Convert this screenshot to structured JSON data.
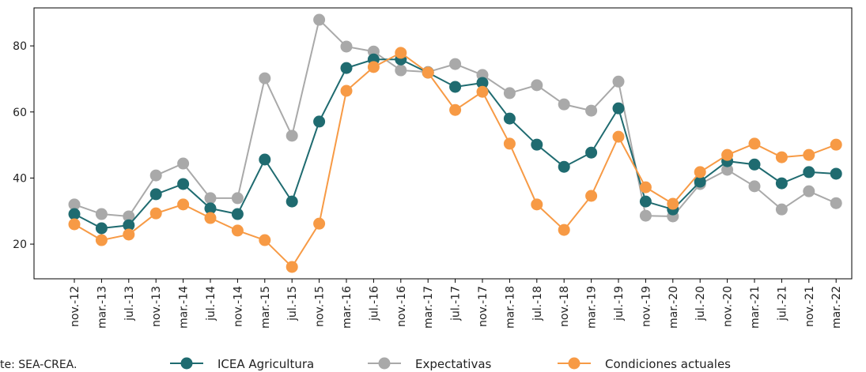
{
  "chart_data": {
    "type": "line",
    "categories": [
      "nov.-12",
      "mar.-13",
      "jul.-13",
      "nov.-13",
      "mar.-14",
      "jul.-14",
      "nov.-14",
      "mar.-15",
      "jul.-15",
      "nov.-15",
      "mar.-16",
      "jul.-16",
      "nov.-16",
      "mar.-17",
      "jul.-17",
      "nov.-17",
      "mar.-18",
      "jul.-18",
      "nov.-18",
      "mar.-19",
      "jul.-19",
      "nov.-19",
      "mar.-20",
      "jul.-20",
      "nov.-20",
      "mar.-21",
      "jul.-21",
      "nov.-21",
      "mar.-22"
    ],
    "series": [
      {
        "name": "Expectativas",
        "color": "#a9a9a9",
        "values": [
          32.0,
          29.1,
          28.4,
          40.8,
          44.4,
          33.9,
          33.9,
          70.2,
          52.8,
          87.9,
          79.8,
          78.3,
          72.6,
          72.1,
          74.5,
          71.2,
          65.7,
          68.1,
          62.3,
          60.4,
          69.2,
          28.6,
          28.4,
          38.2,
          42.5,
          37.5,
          30.5,
          36.0,
          32.4
        ]
      },
      {
        "name": "ICEA Agricultura",
        "color": "#1f6b70",
        "values": [
          29.1,
          24.8,
          25.7,
          35.1,
          38.2,
          30.8,
          29.1,
          45.6,
          32.9,
          57.1,
          73.3,
          75.9,
          75.9,
          71.9,
          67.6,
          68.8,
          58.0,
          50.1,
          43.4,
          47.7,
          61.1,
          32.9,
          30.5,
          38.9,
          45.1,
          44.1,
          38.4,
          41.8,
          41.3
        ]
      },
      {
        "name": "Condiciones actuales",
        "color": "#f79a45",
        "values": [
          26.0,
          21.2,
          22.9,
          29.3,
          32.0,
          27.9,
          24.1,
          21.2,
          13.1,
          26.2,
          66.4,
          73.6,
          77.9,
          71.9,
          60.6,
          66.1,
          50.4,
          32.0,
          24.3,
          34.6,
          52.5,
          37.2,
          32.2,
          41.8,
          47.0,
          50.4,
          46.3,
          47.0,
          50.1
        ]
      }
    ],
    "legend_order": [
      1,
      0,
      2
    ],
    "ylim": [
      9.5,
      91.5
    ],
    "yticks": [
      20,
      40,
      60,
      80
    ],
    "source": "te: SEA-CREA."
  }
}
